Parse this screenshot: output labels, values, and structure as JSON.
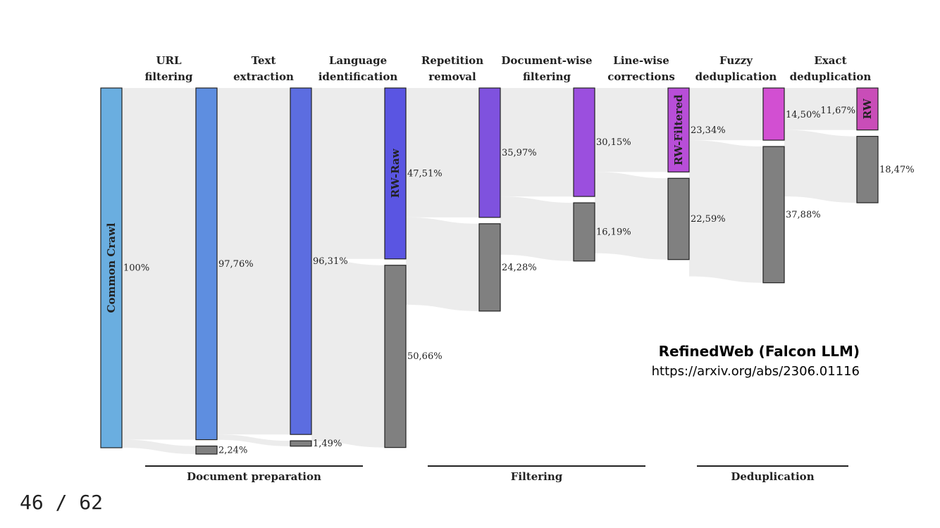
{
  "stages": [
    {
      "line1": "URL",
      "line2": "filtering"
    },
    {
      "line1": "Text",
      "line2": "extraction"
    },
    {
      "line1": "Language",
      "line2": "identification"
    },
    {
      "line1": "Repetition",
      "line2": "removal"
    },
    {
      "line1": "Document-wise",
      "line2": "filtering"
    },
    {
      "line1": "Line-wise",
      "line2": "corrections"
    },
    {
      "line1": "Fuzzy",
      "line2": "deduplication"
    },
    {
      "line1": "Exact",
      "line2": "deduplication"
    }
  ],
  "columns": [
    {
      "name": "Common Crawl",
      "kept": 100,
      "kept_label": "100%",
      "removed": null,
      "removed_label": "",
      "color": "#6aaee0"
    },
    {
      "name": "",
      "kept": 97.76,
      "kept_label": "97,76%",
      "removed": 2.24,
      "removed_label": "2,24%",
      "color": "#5e8ee0"
    },
    {
      "name": "",
      "kept": 96.31,
      "kept_label": "96,31%",
      "removed": 1.49,
      "removed_label": "1,49%",
      "color": "#5c6de0"
    },
    {
      "name": "RW-Raw",
      "kept": 47.51,
      "kept_label": "47,51%",
      "removed": 50.66,
      "removed_label": "50,66%",
      "color": "#5a55e2"
    },
    {
      "name": "",
      "kept": 35.97,
      "kept_label": "35,97%",
      "removed": 24.28,
      "removed_label": "24,28%",
      "color": "#7f52de"
    },
    {
      "name": "",
      "kept": 30.15,
      "kept_label": "30,15%",
      "removed": 16.19,
      "removed_label": "16,19%",
      "color": "#9b4fde"
    },
    {
      "name": "RW-Filtered",
      "kept": 23.34,
      "kept_label": "23,34%",
      "removed": 22.59,
      "removed_label": "22,59%",
      "color": "#b84ed8"
    },
    {
      "name": "",
      "kept": 14.5,
      "kept_label": "14,50%",
      "removed": 37.88,
      "removed_label": "37,88%",
      "color": "#d24fd2"
    },
    {
      "name": "RW",
      "kept": 11.67,
      "kept_label": "11,67%",
      "removed": 18.47,
      "removed_label": "18,47%",
      "color": "#c94db8"
    }
  ],
  "groups": [
    {
      "label": "Document preparation"
    },
    {
      "label": "Filtering"
    },
    {
      "label": "Deduplication"
    }
  ],
  "colors": {
    "removed": "#808080",
    "flow": "#ececec"
  },
  "reference": {
    "title": "RefinedWeb (Falcon LLM)",
    "url": "https://arxiv.org/abs/2306.01116"
  },
  "page": {
    "number": "46 / 62"
  }
}
